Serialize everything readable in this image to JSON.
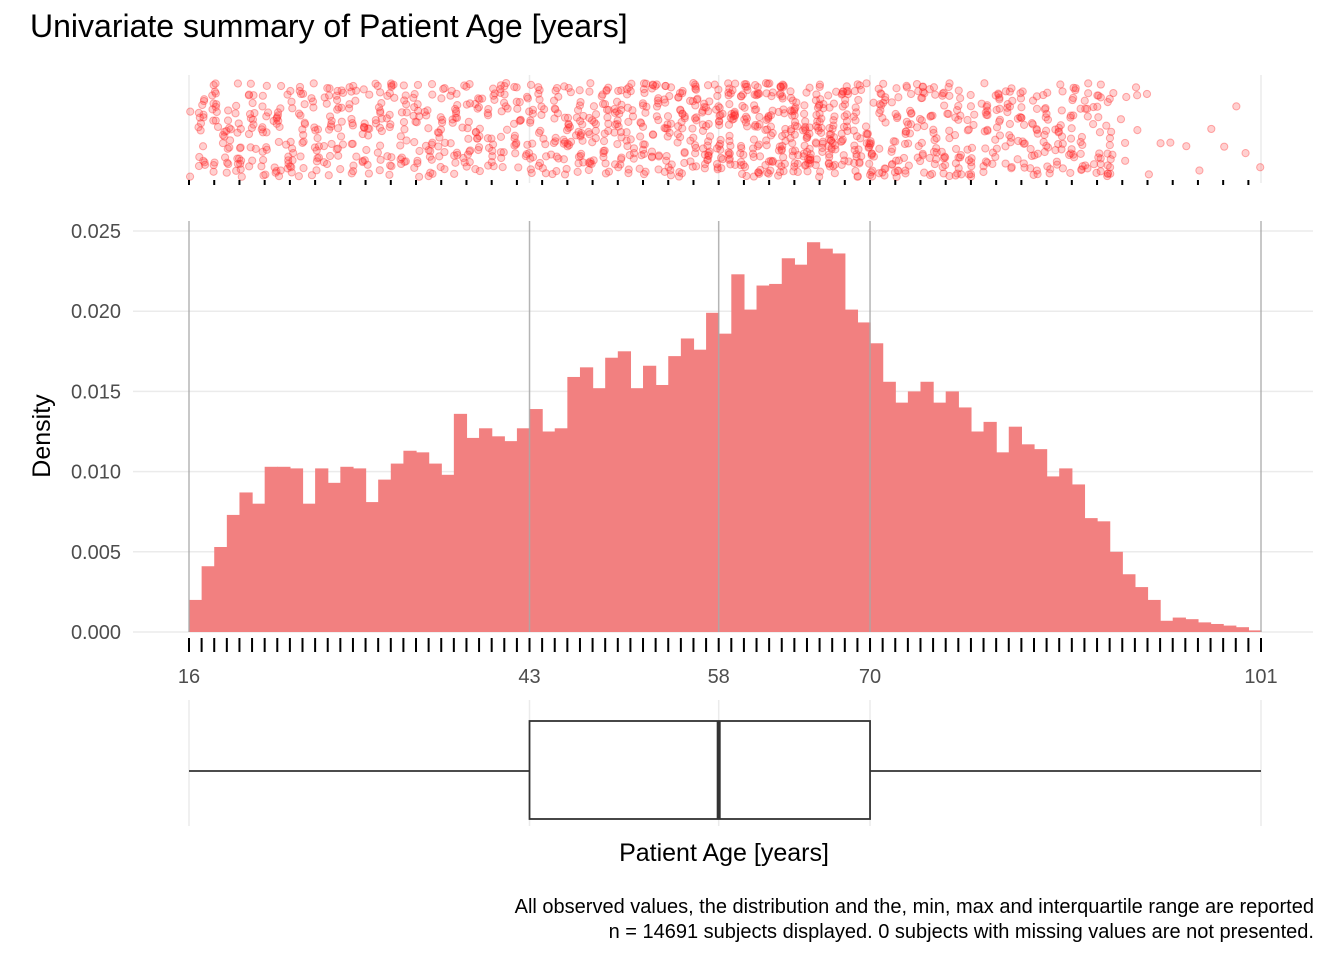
{
  "chart_data": {
    "type": "bar",
    "title": "Univariate summary of Patient Age [years]",
    "xlabel": "Patient Age [years]",
    "ylabel": "Density",
    "xlim": [
      16,
      101
    ],
    "ylim": [
      0,
      0.025
    ],
    "y_ticks": [
      "0.000",
      "0.005",
      "0.010",
      "0.015",
      "0.020",
      "0.025"
    ],
    "x_ticks": [
      16,
      43,
      58,
      70,
      101
    ],
    "bin_start": 16,
    "bin_width": 1,
    "density": [
      0.002,
      0.0041,
      0.0053,
      0.0073,
      0.0087,
      0.008,
      0.0103,
      0.0103,
      0.0102,
      0.008,
      0.0102,
      0.0093,
      0.0103,
      0.0102,
      0.0081,
      0.0095,
      0.0105,
      0.0113,
      0.0112,
      0.0105,
      0.0098,
      0.0136,
      0.0121,
      0.0127,
      0.0122,
      0.0119,
      0.0127,
      0.0139,
      0.0125,
      0.0127,
      0.0159,
      0.0165,
      0.0152,
      0.0171,
      0.0175,
      0.0152,
      0.0166,
      0.0154,
      0.0172,
      0.0183,
      0.0176,
      0.0199,
      0.0186,
      0.0223,
      0.0201,
      0.0216,
      0.0217,
      0.0233,
      0.0229,
      0.0243,
      0.0239,
      0.0236,
      0.0201,
      0.0193,
      0.018,
      0.0156,
      0.0143,
      0.015,
      0.0156,
      0.0143,
      0.015,
      0.014,
      0.0125,
      0.0131,
      0.0112,
      0.0128,
      0.0117,
      0.0114,
      0.0097,
      0.0102,
      0.0092,
      0.0071,
      0.0069,
      0.005,
      0.0036,
      0.0028,
      0.002,
      0.0007,
      0.0009,
      0.0008,
      0.0006,
      0.0005,
      0.0004,
      0.0003,
      0.0001
    ],
    "boxplot": {
      "min": 16,
      "q1": 43,
      "median": 58,
      "q3": 70,
      "max": 101
    },
    "colors": {
      "bars": "#f28080",
      "points": "#ff2a2a",
      "box": "#333333",
      "grid": "#ebebeb",
      "quartile_lines": "#a8a8a8"
    },
    "grid": true,
    "legend": "none"
  },
  "caption_line1": "All observed values, the distribution and the, min, max and interquartile range are reported",
  "caption_line2": "n = 14691 subjects displayed. 0 subjects with missing values are not presented."
}
